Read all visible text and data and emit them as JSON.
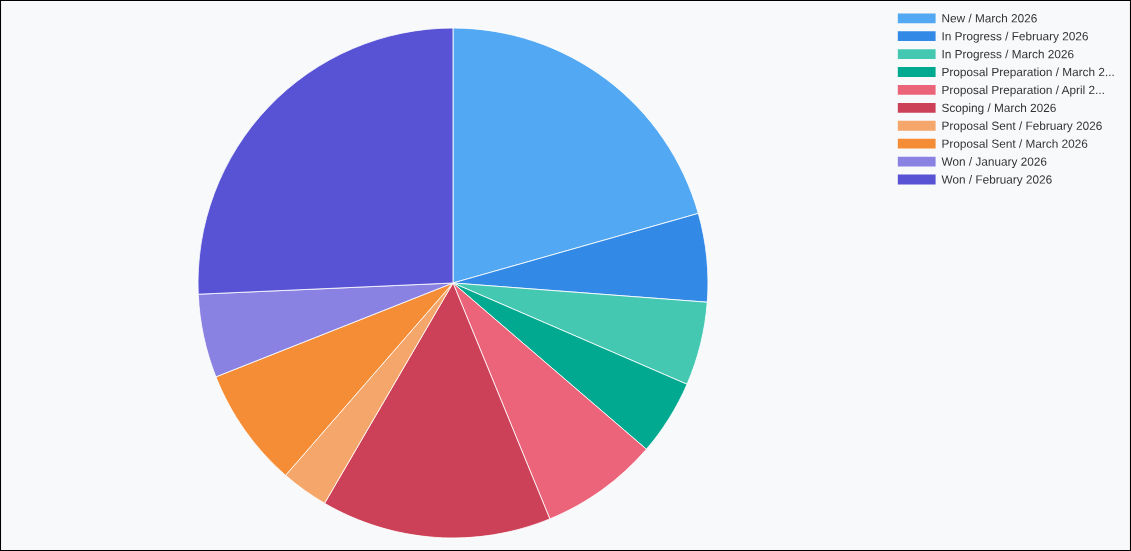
{
  "chart_data": {
    "type": "pie",
    "categories": [
      "New / March 2026",
      "In Progress / February 2026",
      "In Progress / March 2026",
      "Proposal Preparation / March 2...",
      "Proposal Preparation / April 2...",
      "Scoping / March 2026",
      "Proposal Sent / February 2026",
      "Proposal Sent / March 2026",
      "Won / January 2026",
      "Won / February 2026"
    ],
    "values": [
      20.6,
      5.6,
      5.3,
      4.8,
      7.5,
      14.6,
      3.0,
      7.6,
      5.3,
      25.7
    ],
    "colors": [
      "#52a8f2",
      "#3289e6",
      "#44c8b2",
      "#00a98f",
      "#ec6479",
      "#cc4157",
      "#f5a66a",
      "#f48d35",
      "#8a82e2",
      "#5853d4"
    ],
    "legend": "top right"
  }
}
